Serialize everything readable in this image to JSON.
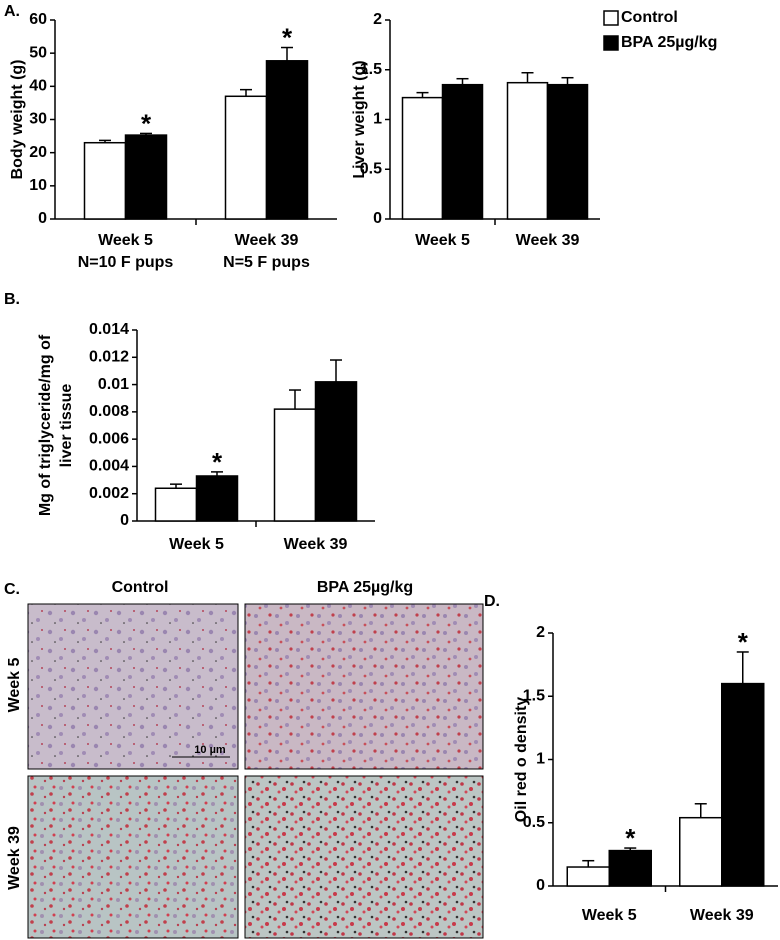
{
  "panel_labels": [
    "A.",
    "B.",
    "C.",
    "D."
  ],
  "micrographs": {
    "columns": [
      "Control",
      "BPA 25µg/kg"
    ],
    "rows": [
      "Week 5",
      "Week 39"
    ],
    "scale_bar": "10 µm"
  },
  "chart_data": [
    {
      "type": "bar",
      "ylabel": "Body weight (g)",
      "categories": [
        "Week 5",
        "Week 39"
      ],
      "category_notes": [
        "N=10 F pups",
        "N=5 F pups"
      ],
      "ylim": [
        0,
        60
      ],
      "yticks": [
        0,
        10,
        20,
        30,
        40,
        50,
        60
      ],
      "series": [
        {
          "color": "#ffffff",
          "values": [
            23,
            37
          ],
          "errors": [
            0.7,
            2
          ]
        },
        {
          "color": "#000000",
          "values": [
            25.3,
            47.7
          ],
          "errors": [
            0.5,
            4
          ],
          "significance": [
            "*",
            "*"
          ]
        }
      ]
    },
    {
      "type": "bar",
      "ylabel": "Liver weight (g)",
      "categories": [
        "Week 5",
        "Week 39"
      ],
      "ylim": [
        0,
        2
      ],
      "yticks": [
        0,
        0.5,
        1,
        1.5,
        2
      ],
      "legend": "upper right",
      "series": [
        {
          "name": "Control",
          "color": "#ffffff",
          "values": [
            1.22,
            1.37
          ],
          "errors": [
            0.05,
            0.1
          ]
        },
        {
          "name": "BPA 25µg/kg",
          "color": "#000000",
          "values": [
            1.35,
            1.35
          ],
          "errors": [
            0.06,
            0.07
          ]
        }
      ]
    },
    {
      "type": "bar",
      "ylabel": [
        "Mg of triglyceride/mg of",
        "liver tissue"
      ],
      "categories": [
        "Week 5",
        "Week 39"
      ],
      "ylim": [
        0,
        0.014
      ],
      "yticks": [
        0,
        0.002,
        0.004,
        0.006,
        0.008,
        0.01,
        0.012,
        0.014
      ],
      "series": [
        {
          "color": "#ffffff",
          "values": [
            0.0024,
            0.0082
          ],
          "errors": [
            0.0003,
            0.0014
          ]
        },
        {
          "color": "#000000",
          "values": [
            0.0033,
            0.0102
          ],
          "errors": [
            0.0003,
            0.0016
          ],
          "significance": [
            "*",
            null
          ]
        }
      ]
    },
    {
      "type": "bar",
      "ylabel": "Oil red o density",
      "categories": [
        "Week 5",
        "Week 39"
      ],
      "ylim": [
        0,
        2
      ],
      "yticks": [
        0,
        0.5,
        1,
        1.5,
        2
      ],
      "series": [
        {
          "color": "#ffffff",
          "values": [
            0.15,
            0.54
          ],
          "errors": [
            0.05,
            0.11
          ]
        },
        {
          "color": "#000000",
          "values": [
            0.28,
            1.6
          ],
          "errors": [
            0.02,
            0.25
          ],
          "significance": [
            "*",
            "*"
          ]
        }
      ]
    }
  ]
}
